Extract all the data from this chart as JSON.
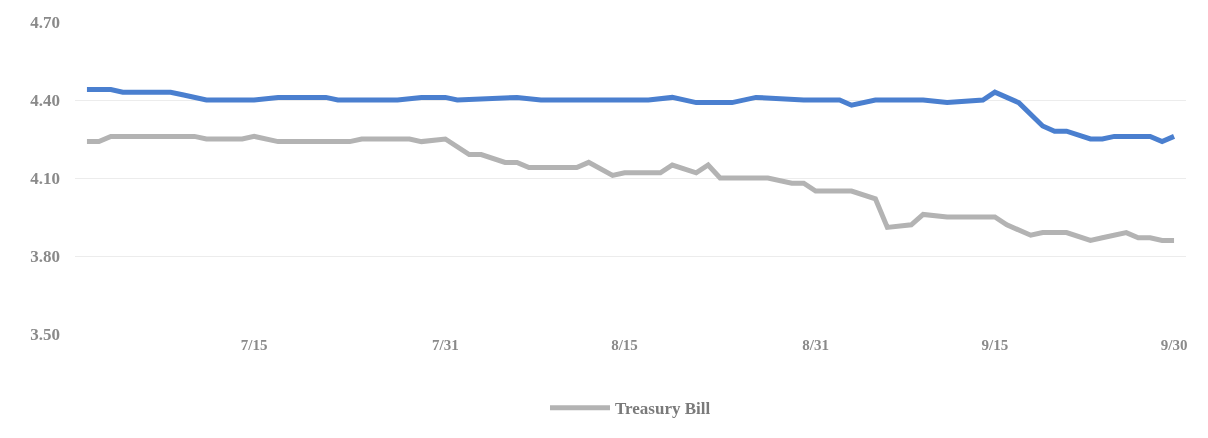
{
  "chart_data": {
    "type": "line",
    "xlim": [
      "--06-30",
      "--10-01"
    ],
    "xticks": [
      {
        "value": "--07-15",
        "label": "7/15"
      },
      {
        "value": "--07-31",
        "label": "7/31"
      },
      {
        "value": "--08-15",
        "label": "8/15"
      },
      {
        "value": "--08-31",
        "label": "8/31"
      },
      {
        "value": "--09-15",
        "label": "9/15"
      },
      {
        "value": "--09-30",
        "label": "9/30"
      }
    ],
    "ylim": [
      3.5,
      4.7
    ],
    "yticks": [
      {
        "value": 3.5,
        "label": "3.50"
      },
      {
        "value": 3.8,
        "label": "3.80"
      },
      {
        "value": 4.1,
        "label": "4.10"
      },
      {
        "value": 4.4,
        "label": "4.40"
      },
      {
        "value": 4.7,
        "label": "4.70"
      }
    ],
    "grid": "y",
    "legend": "bottom",
    "marker": "none",
    "line_style": "solid",
    "series": [
      {
        "color": "#4a7fcf",
        "x": [
          "--07-01",
          "--07-03",
          "--07-04",
          "--07-08",
          "--07-09",
          "--07-11",
          "--07-15",
          "--07-17",
          "--07-21",
          "--07-22",
          "--07-24",
          "--07-27",
          "--07-29",
          "--07-31",
          "--08-01",
          "--08-06",
          "--08-08",
          "--08-17",
          "--08-19",
          "--08-21",
          "--08-24",
          "--08-26",
          "--08-30",
          "--09-02",
          "--09-03",
          "--09-05",
          "--09-09",
          "--09-11",
          "--09-14",
          "--09-15",
          "--09-17",
          "--09-19",
          "--09-20",
          "--09-21",
          "--09-23",
          "--09-24",
          "--09-25",
          "--09-28",
          "--09-29",
          "--09-30"
        ],
        "values": [
          4.44,
          4.44,
          4.43,
          4.43,
          4.42,
          4.4,
          4.4,
          4.41,
          4.41,
          4.4,
          4.4,
          4.4,
          4.41,
          4.41,
          4.4,
          4.41,
          4.4,
          4.4,
          4.41,
          4.39,
          4.39,
          4.41,
          4.4,
          4.4,
          4.38,
          4.4,
          4.4,
          4.39,
          4.4,
          4.43,
          4.39,
          4.3,
          4.28,
          4.28,
          4.25,
          4.25,
          4.26,
          4.26,
          4.24,
          4.26
        ]
      },
      {
        "name": "Treasury Bill",
        "color": "#b3b3b3",
        "x": [
          "--07-01",
          "--07-02",
          "--07-03",
          "--07-10",
          "--07-11",
          "--07-14",
          "--07-15",
          "--07-17",
          "--07-23",
          "--07-24",
          "--07-28",
          "--07-29",
          "--07-31",
          "--08-02",
          "--08-03",
          "--08-05",
          "--08-06",
          "--08-07",
          "--08-11",
          "--08-12",
          "--08-14",
          "--08-15",
          "--08-18",
          "--08-19",
          "--08-21",
          "--08-22",
          "--08-23",
          "--08-27",
          "--08-29",
          "--08-30",
          "--08-31",
          "--09-03",
          "--09-05",
          "--09-06",
          "--09-08",
          "--09-09",
          "--09-11",
          "--09-15",
          "--09-16",
          "--09-18",
          "--09-19",
          "--09-21",
          "--09-23",
          "--09-24",
          "--09-26",
          "--09-27",
          "--09-28",
          "--09-29",
          "--09-30"
        ],
        "values": [
          4.24,
          4.24,
          4.26,
          4.26,
          4.25,
          4.25,
          4.26,
          4.24,
          4.24,
          4.25,
          4.25,
          4.24,
          4.25,
          4.19,
          4.19,
          4.16,
          4.16,
          4.14,
          4.14,
          4.16,
          4.11,
          4.12,
          4.12,
          4.15,
          4.12,
          4.15,
          4.1,
          4.1,
          4.08,
          4.08,
          4.05,
          4.05,
          4.02,
          3.91,
          3.92,
          3.96,
          3.95,
          3.95,
          3.92,
          3.88,
          3.89,
          3.89,
          3.86,
          3.87,
          3.89,
          3.87,
          3.87,
          3.86,
          3.86
        ]
      }
    ]
  }
}
